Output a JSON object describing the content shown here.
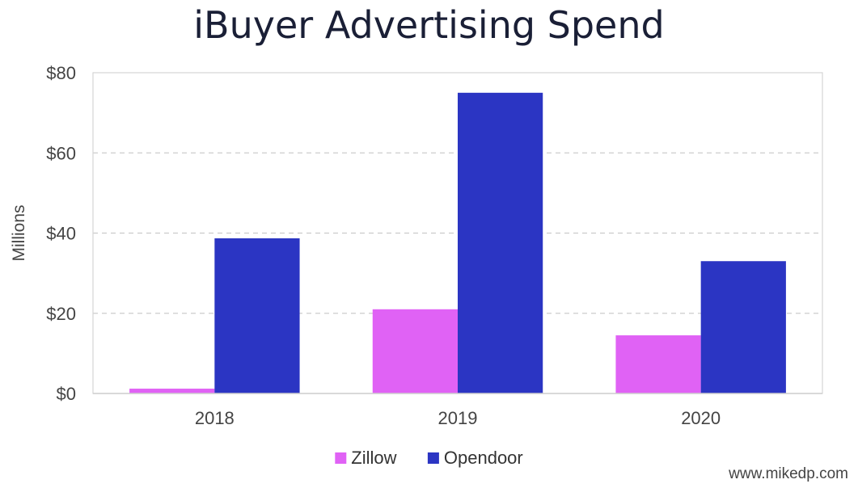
{
  "chart_data": {
    "type": "bar",
    "title": "iBuyer Advertising Spend",
    "xlabel": "",
    "ylabel": "Millions",
    "categories": [
      "2018",
      "2019",
      "2020"
    ],
    "series": [
      {
        "name": "Zillow",
        "values": [
          1.2,
          21,
          14.5
        ],
        "color": "#e062f5"
      },
      {
        "name": "Opendoor",
        "values": [
          38.7,
          75,
          33
        ],
        "color": "#2b35c3"
      }
    ],
    "ylim": [
      0,
      80
    ],
    "yticks": [
      0,
      20,
      40,
      60,
      80
    ],
    "ytick_labels": [
      "$0",
      "$20",
      "$40",
      "$60",
      "$80"
    ],
    "grid": "horizontal dashed",
    "legend": "bottom"
  },
  "watermark": "www.mikedp.com"
}
